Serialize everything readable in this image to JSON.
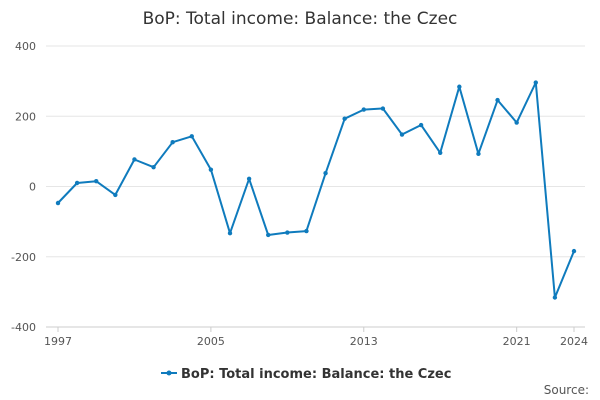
{
  "chart_data": {
    "type": "line",
    "title": "BoP: Total income: Balance: the Czec",
    "xlabel": "",
    "ylabel": "",
    "x": [
      1997,
      1998,
      1999,
      2000,
      2001,
      2002,
      2003,
      2004,
      2005,
      2006,
      2007,
      2008,
      2009,
      2010,
      2011,
      2012,
      2013,
      2014,
      2015,
      2016,
      2017,
      2018,
      2019,
      2020,
      2021,
      2022,
      2023,
      2024
    ],
    "series": [
      {
        "name": "BoP: Total income: Balance: the Czec",
        "color": "#0f7bbd",
        "values": [
          -47,
          10,
          15,
          -24,
          77,
          55,
          126,
          143,
          48,
          -133,
          22,
          -138,
          -131,
          -127,
          38,
          193,
          219,
          222,
          148,
          175,
          96,
          284,
          93,
          246,
          182,
          296,
          -316,
          -184
        ]
      }
    ],
    "ylim": [
      -400,
      400
    ],
    "yticks": [
      400,
      200,
      0,
      -200,
      -400
    ],
    "xticks": [
      1997,
      2005,
      2013,
      2021,
      2024
    ],
    "grid": true,
    "legend": "bottom-center",
    "source_label": "Source:"
  }
}
